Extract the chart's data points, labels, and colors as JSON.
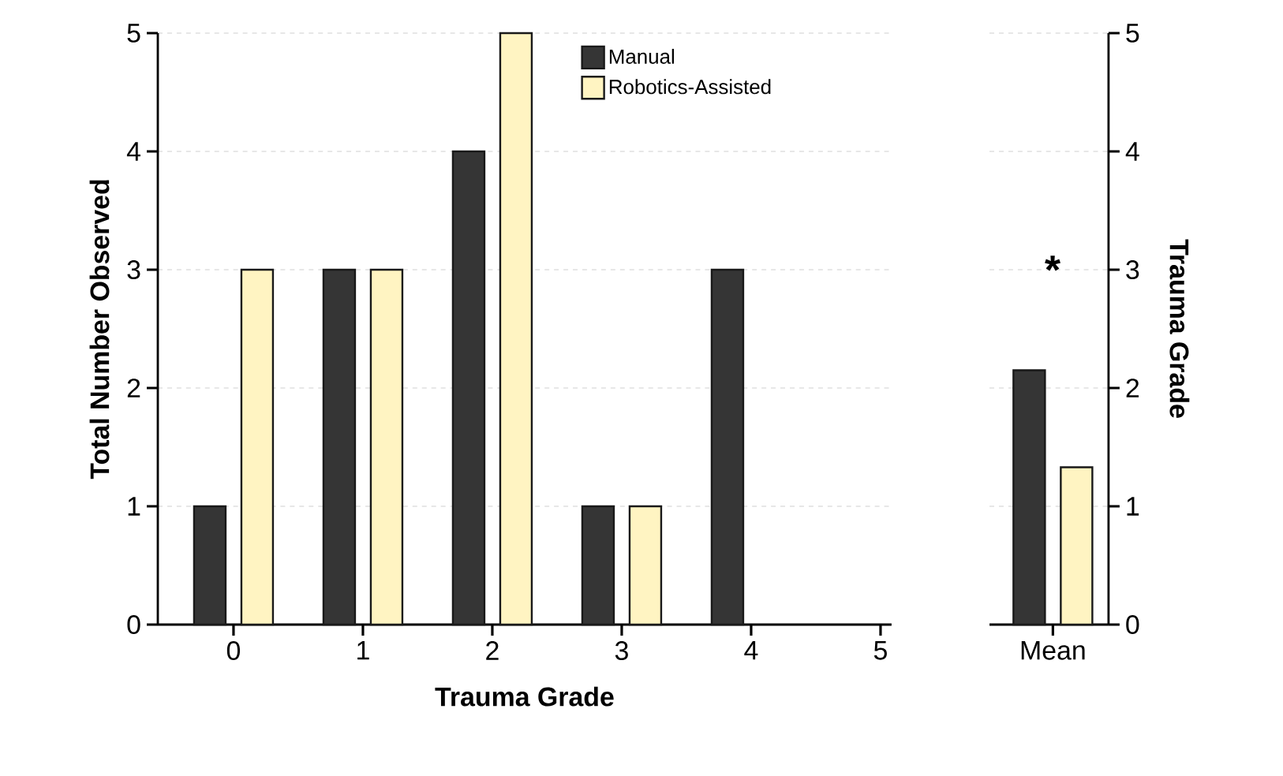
{
  "chart_data": [
    {
      "type": "bar",
      "xlabel": "Trauma Grade",
      "ylabel": "Total Number Observed",
      "categories": [
        "0",
        "1",
        "2",
        "3",
        "4",
        "5"
      ],
      "series": [
        {
          "name": "Manual",
          "color": "#353535",
          "values": [
            1,
            3,
            4,
            1,
            3,
            null
          ]
        },
        {
          "name": "Robotics-Assisted",
          "color": "#fff4c2",
          "values": [
            3,
            3,
            5,
            1,
            null,
            null
          ]
        }
      ],
      "ylim": [
        0,
        5
      ],
      "yticks": [
        0,
        1,
        2,
        3,
        4,
        5
      ],
      "grid": "y",
      "legend": "top right"
    },
    {
      "type": "bar",
      "y2label": "Trauma Grade",
      "categories": [
        "Mean"
      ],
      "series": [
        {
          "color": "#353535",
          "values": [
            2.15
          ],
          "axis": "y2"
        },
        {
          "color": "#fff4c2",
          "values": [
            1.33
          ],
          "axis": "y2"
        }
      ],
      "y2lim": [
        0,
        5
      ],
      "y2ticks": [
        0,
        1,
        2,
        3,
        4,
        5
      ],
      "grid": "y",
      "legend": false,
      "annotations": [
        "*"
      ]
    }
  ]
}
